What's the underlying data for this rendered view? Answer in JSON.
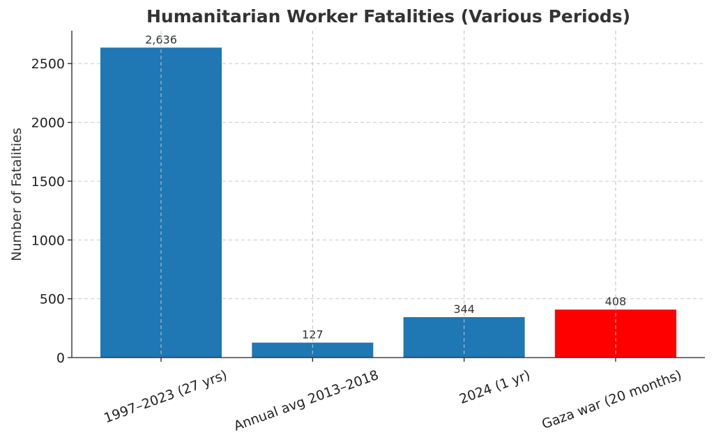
{
  "chart_data": {
    "type": "bar",
    "title": "Humanitarian Worker Fatalities (Various Periods)",
    "xlabel": "",
    "ylabel": "Number of Fatalities",
    "categories": [
      "1997–2023 (27 yrs)",
      "Annual avg 2013–2018",
      "2024 (1 yr)",
      "Gaza war (20 months)"
    ],
    "values": [
      2636,
      127,
      344,
      408
    ],
    "data_labels": [
      "2,636",
      "127",
      "344",
      "408"
    ],
    "bar_colors": [
      "#1f77b4",
      "#1f77b4",
      "#1f77b4",
      "#ff0000"
    ],
    "ylim": [
      0,
      2780
    ],
    "yticks": [
      0,
      500,
      1000,
      1500,
      2000,
      2500
    ],
    "ytick_labels": [
      "0",
      "500",
      "1000",
      "1500",
      "2000",
      "2500"
    ],
    "grid": true,
    "legend": "none"
  }
}
